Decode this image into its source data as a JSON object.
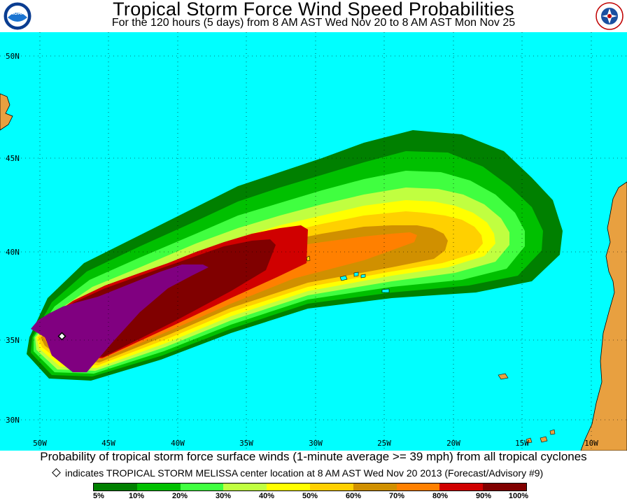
{
  "header": {
    "title": "Tropical Storm Force Wind Speed Probabilities",
    "subtitle": "For the 120 hours (5 days) from 8 AM AST Wed Nov 20 to 8 AM AST Mon Nov 25",
    "logo_left": "NOAA",
    "logo_right": "NATIONAL WEATHER SERVICE"
  },
  "map": {
    "ocean_color": "#00ffff",
    "land_color": "#e8a040",
    "lat_labels": [
      "50N",
      "45N",
      "40N",
      "35N",
      "30N"
    ],
    "lon_labels": [
      "50W",
      "45W",
      "40W",
      "35W",
      "30W",
      "25W",
      "20W",
      "15W",
      "10W"
    ],
    "storm_marker": "storm-center-diamond"
  },
  "footer": {
    "caption": "Probability of tropical storm force surface winds (1-minute average >= 39 mph) from all tropical cyclones",
    "note": "indicates TROPICAL STORM MELISSA center location at 8 AM AST Wed Nov 20 2013 (Forecast/Advisory #9)"
  },
  "legend": {
    "colors": [
      "#008000",
      "#00c000",
      "#40ff40",
      "#c0ff40",
      "#ffff00",
      "#ffd000",
      "#d09000",
      "#ff8000",
      "#d00000",
      "#800000",
      "#800080"
    ],
    "labels": [
      "5%",
      "10%",
      "20%",
      "30%",
      "40%",
      "50%",
      "60%",
      "70%",
      "80%",
      "90%",
      "100%"
    ]
  }
}
